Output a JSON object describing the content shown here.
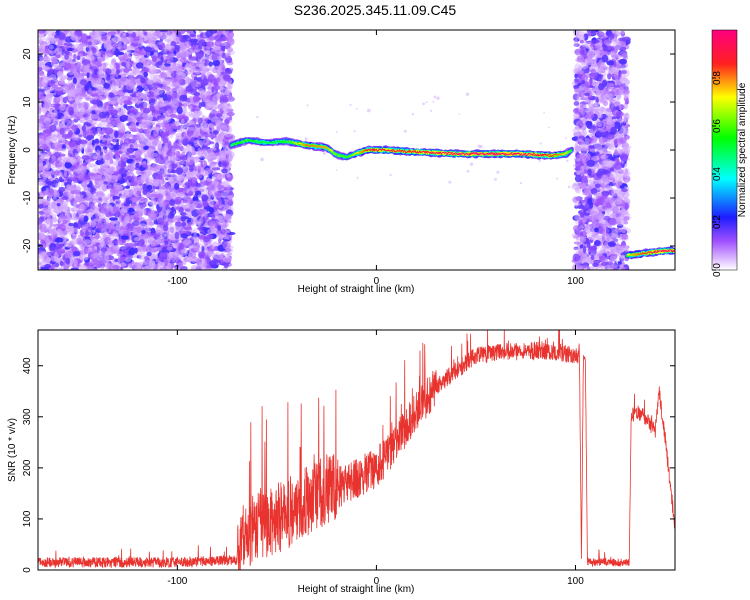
{
  "title": "S236.2025.345.11.09.C45",
  "colors": {
    "snr_line": "#e8332f",
    "scatter_base": "#7b2fe0"
  },
  "chart_data": [
    {
      "type": "heatmap",
      "xlabel": "Height of straight line (km)",
      "ylabel": "Frequency (Hz)",
      "xlim": [
        -170,
        150
      ],
      "ylim": [
        -25,
        25
      ],
      "x_ticks": [
        "-100",
        "0",
        "100"
      ],
      "y_ticks": [
        "-20",
        "-10",
        "0",
        "10",
        "20"
      ],
      "colorbar": {
        "label": "Normalized spectral amplitude",
        "range": [
          0,
          1
        ],
        "ticks": [
          "0.0",
          "0.2",
          "0.4",
          "0.6",
          "0.8"
        ],
        "colormap": "rainbow (magenta-blue-cyan-green-yellow-red)"
      },
      "regions": [
        {
          "name": "noise",
          "x_range": [
            -170,
            -73
          ],
          "freq_range": [
            -25,
            25
          ],
          "amplitude": [
            0.05,
            0.2
          ]
        },
        {
          "name": "noise",
          "x_range": [
            100,
            126
          ],
          "freq_range": [
            -25,
            25
          ],
          "amplitude": [
            0.05,
            0.2
          ]
        }
      ],
      "ridge": {
        "x": [
          -73,
          -65,
          -55,
          -45,
          -35,
          -25,
          -20,
          -15,
          -5,
          5,
          15,
          25,
          40,
          55,
          70,
          80,
          88,
          95,
          98
        ],
        "freq": [
          1.0,
          2.0,
          1.5,
          1.8,
          1.0,
          0.5,
          -1.0,
          -1.5,
          0.0,
          0.0,
          -0.3,
          -0.5,
          -0.8,
          -0.8,
          -0.8,
          -1.0,
          -1.2,
          -0.8,
          0.0
        ],
        "amplitude": [
          0.55,
          0.55,
          0.5,
          0.55,
          0.8,
          0.75,
          0.6,
          0.55,
          0.85,
          0.9,
          0.85,
          0.9,
          0.95,
          0.95,
          0.95,
          0.9,
          0.85,
          0.7,
          0.5
        ]
      },
      "ridge2": {
        "x": [
          126,
          135,
          145,
          150
        ],
        "freq": [
          -22,
          -21.5,
          -21,
          -21
        ],
        "amplitude": [
          0.7,
          0.85,
          0.95,
          0.9
        ]
      }
    },
    {
      "type": "line",
      "xlabel": "Height of straight line (km)",
      "ylabel": "SNR (10 * v/v)",
      "xlim": [
        -170,
        150
      ],
      "ylim": [
        0,
        470
      ],
      "x_ticks": [
        "-100",
        "0",
        "100"
      ],
      "y_ticks": [
        "0",
        "100",
        "200",
        "300",
        "400"
      ],
      "envelope": {
        "x": [
          -170,
          -100,
          -70,
          -65,
          -60,
          -50,
          -40,
          -30,
          -20,
          -10,
          0,
          10,
          20,
          30,
          40,
          50,
          60,
          80,
          95,
          102,
          103,
          104,
          105,
          106,
          127,
          128,
          129,
          130,
          135,
          140,
          142,
          145,
          150
        ],
        "snr": [
          15,
          15,
          20,
          60,
          90,
          100,
          120,
          150,
          160,
          180,
          200,
          250,
          310,
          360,
          390,
          420,
          425,
          430,
          425,
          420,
          20,
          420,
          410,
          15,
          15,
          300,
          305,
          310,
          300,
          270,
          350,
          260,
          80
        ]
      },
      "noise": [
        {
          "x_range": [
            -170,
            -70
          ],
          "amplitude": 20
        },
        {
          "x_range": [
            -70,
            -20
          ],
          "amplitude": 140
        },
        {
          "x_range": [
            -20,
            30
          ],
          "amplitude": 80
        },
        {
          "x_range": [
            30,
            102
          ],
          "amplitude": 35
        },
        {
          "x_range": [
            106,
            127
          ],
          "amplitude": 15
        },
        {
          "x_range": [
            128,
            150
          ],
          "amplitude": 30
        }
      ]
    }
  ]
}
